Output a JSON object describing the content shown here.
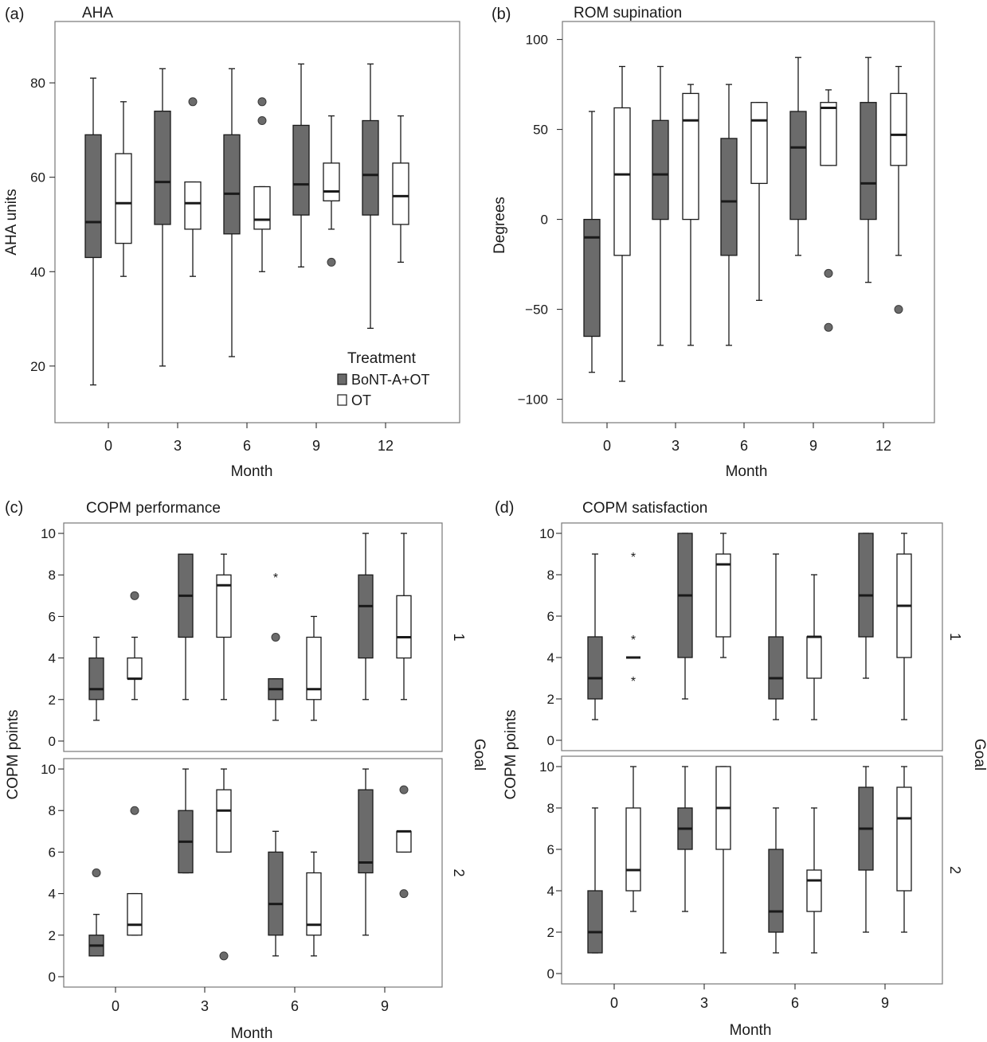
{
  "colors": {
    "treated": "#6b6b6b",
    "control": "#ffffff",
    "outlier": "#6b6b6b",
    "frame": "#777777",
    "ink": "#1a1a1a"
  },
  "legend": {
    "title": "Treatment",
    "items": [
      "BoNT-A+OT",
      "OT"
    ]
  },
  "chart_data": [
    {
      "panel_label": "(a)",
      "title": "AHA",
      "type": "box",
      "xlabel": "Month",
      "ylabel": "AHA units",
      "ylim": [
        8,
        93
      ],
      "yticks": [
        20,
        40,
        60,
        80
      ],
      "categories": [
        "0",
        "3",
        "6",
        "9",
        "12"
      ],
      "series": [
        {
          "name": "BoNT-A+OT",
          "boxes": [
            {
              "x": "0",
              "whisker_low": 16,
              "q1": 43,
              "median": 50.5,
              "q3": 69,
              "whisker_high": 81,
              "outliers": []
            },
            {
              "x": "3",
              "whisker_low": 20,
              "q1": 50,
              "median": 59,
              "q3": 74,
              "whisker_high": 83,
              "outliers": []
            },
            {
              "x": "6",
              "whisker_low": 22,
              "q1": 48,
              "median": 56.5,
              "q3": 69,
              "whisker_high": 83,
              "outliers": []
            },
            {
              "x": "9",
              "whisker_low": 41,
              "q1": 52,
              "median": 58.5,
              "q3": 71,
              "whisker_high": 84,
              "outliers": []
            },
            {
              "x": "12",
              "whisker_low": 28,
              "q1": 52,
              "median": 60.5,
              "q3": 72,
              "whisker_high": 84,
              "outliers": []
            }
          ]
        },
        {
          "name": "OT",
          "boxes": [
            {
              "x": "0",
              "whisker_low": 39,
              "q1": 46,
              "median": 54.5,
              "q3": 65,
              "whisker_high": 76,
              "outliers": []
            },
            {
              "x": "3",
              "whisker_low": 39,
              "q1": 49,
              "median": 54.5,
              "q3": 59,
              "whisker_high": 59,
              "outliers": [
                76
              ]
            },
            {
              "x": "6",
              "whisker_low": 40,
              "q1": 49,
              "median": 51,
              "q3": 58,
              "whisker_high": 58,
              "outliers": [
                76,
                72
              ]
            },
            {
              "x": "9",
              "whisker_low": 49,
              "q1": 55,
              "median": 57,
              "q3": 63,
              "whisker_high": 73,
              "outliers": [
                42
              ]
            },
            {
              "x": "12",
              "whisker_low": 42,
              "q1": 50,
              "median": 56,
              "q3": 63,
              "whisker_high": 73,
              "outliers": []
            }
          ]
        }
      ]
    },
    {
      "panel_label": "(b)",
      "title": "ROM supination",
      "type": "box",
      "xlabel": "Month",
      "ylabel": "Degrees",
      "ylim": [
        -113,
        110
      ],
      "yticks": [
        -100,
        -50,
        0,
        50,
        100
      ],
      "categories": [
        "0",
        "3",
        "6",
        "9",
        "12"
      ],
      "series": [
        {
          "name": "BoNT-A+OT",
          "boxes": [
            {
              "x": "0",
              "whisker_low": -85,
              "q1": -65,
              "median": -10,
              "q3": 0,
              "whisker_high": 60,
              "outliers": []
            },
            {
              "x": "3",
              "whisker_low": -70,
              "q1": 0,
              "median": 25,
              "q3": 55,
              "whisker_high": 85,
              "outliers": []
            },
            {
              "x": "6",
              "whisker_low": -70,
              "q1": -20,
              "median": 10,
              "q3": 45,
              "whisker_high": 75,
              "outliers": []
            },
            {
              "x": "9",
              "whisker_low": -20,
              "q1": 0,
              "median": 40,
              "q3": 60,
              "whisker_high": 90,
              "outliers": []
            },
            {
              "x": "12",
              "whisker_low": -35,
              "q1": 0,
              "median": 20,
              "q3": 65,
              "whisker_high": 90,
              "outliers": []
            }
          ]
        },
        {
          "name": "OT",
          "boxes": [
            {
              "x": "0",
              "whisker_low": -90,
              "q1": -20,
              "median": 25,
              "q3": 62,
              "whisker_high": 85,
              "outliers": []
            },
            {
              "x": "3",
              "whisker_low": -70,
              "q1": 0,
              "median": 55,
              "q3": 70,
              "whisker_high": 75,
              "outliers": []
            },
            {
              "x": "6",
              "whisker_low": -45,
              "q1": 20,
              "median": 55,
              "q3": 65,
              "whisker_high": 65,
              "outliers": []
            },
            {
              "x": "9",
              "whisker_low": 30,
              "q1": 30,
              "median": 62,
              "q3": 65,
              "whisker_high": 72,
              "outliers": [
                -30,
                -60
              ]
            },
            {
              "x": "12",
              "whisker_low": -20,
              "q1": 30,
              "median": 47,
              "q3": 70,
              "whisker_high": 85,
              "outliers": [
                -50
              ]
            }
          ]
        }
      ]
    },
    {
      "panel_label": "(c)",
      "title": "COPM performance",
      "type": "box",
      "xlabel": "Month",
      "ylabel": "COPM points",
      "facet_label": "Goal",
      "ylim": [
        -0.5,
        10.5
      ],
      "yticks": [
        0,
        2,
        4,
        6,
        8,
        10
      ],
      "categories": [
        "0",
        "3",
        "6",
        "9"
      ],
      "facets": [
        {
          "name": "1",
          "series": [
            {
              "name": "BoNT-A+OT",
              "boxes": [
                {
                  "x": "0",
                  "whisker_low": 1,
                  "q1": 2,
                  "median": 2.5,
                  "q3": 4,
                  "whisker_high": 5,
                  "outliers": []
                },
                {
                  "x": "3",
                  "whisker_low": 2,
                  "q1": 5,
                  "median": 7,
                  "q3": 9,
                  "whisker_high": 9,
                  "outliers": []
                },
                {
                  "x": "6",
                  "whisker_low": 1,
                  "q1": 2,
                  "median": 2.5,
                  "q3": 3,
                  "whisker_high": 3,
                  "outliers": [
                    5
                  ],
                  "extremes": [
                    8
                  ]
                },
                {
                  "x": "9",
                  "whisker_low": 2,
                  "q1": 4,
                  "median": 6.5,
                  "q3": 8,
                  "whisker_high": 10,
                  "outliers": []
                }
              ]
            },
            {
              "name": "OT",
              "boxes": [
                {
                  "x": "0",
                  "whisker_low": 2,
                  "q1": 3,
                  "median": 3,
                  "q3": 4,
                  "whisker_high": 5,
                  "outliers": [
                    7
                  ]
                },
                {
                  "x": "3",
                  "whisker_low": 2,
                  "q1": 5,
                  "median": 7.5,
                  "q3": 8,
                  "whisker_high": 9,
                  "outliers": []
                },
                {
                  "x": "6",
                  "whisker_low": 1,
                  "q1": 2,
                  "median": 2.5,
                  "q3": 5,
                  "whisker_high": 6,
                  "outliers": []
                },
                {
                  "x": "9",
                  "whisker_low": 2,
                  "q1": 4,
                  "median": 5,
                  "q3": 7,
                  "whisker_high": 10,
                  "outliers": []
                }
              ]
            }
          ]
        },
        {
          "name": "2",
          "series": [
            {
              "name": "BoNT-A+OT",
              "boxes": [
                {
                  "x": "0",
                  "whisker_low": 1,
                  "q1": 1,
                  "median": 1.5,
                  "q3": 2,
                  "whisker_high": 3,
                  "outliers": [
                    5
                  ]
                },
                {
                  "x": "3",
                  "whisker_low": 5,
                  "q1": 5,
                  "median": 6.5,
                  "q3": 8,
                  "whisker_high": 10,
                  "outliers": []
                },
                {
                  "x": "6",
                  "whisker_low": 1,
                  "q1": 2,
                  "median": 3.5,
                  "q3": 6,
                  "whisker_high": 7,
                  "outliers": []
                },
                {
                  "x": "9",
                  "whisker_low": 2,
                  "q1": 5,
                  "median": 5.5,
                  "q3": 9,
                  "whisker_high": 10,
                  "outliers": []
                }
              ]
            },
            {
              "name": "OT",
              "boxes": [
                {
                  "x": "0",
                  "whisker_low": 2,
                  "q1": 2,
                  "median": 2.5,
                  "q3": 4,
                  "whisker_high": 4,
                  "outliers": [
                    8
                  ]
                },
                {
                  "x": "3",
                  "whisker_low": 6,
                  "q1": 6,
                  "median": 8,
                  "q3": 9,
                  "whisker_high": 10,
                  "outliers": [
                    1
                  ]
                },
                {
                  "x": "6",
                  "whisker_low": 1,
                  "q1": 2,
                  "median": 2.5,
                  "q3": 5,
                  "whisker_high": 6,
                  "outliers": []
                },
                {
                  "x": "9",
                  "whisker_low": 6,
                  "q1": 6,
                  "median": 7,
                  "q3": 7,
                  "whisker_high": 7,
                  "outliers": [
                    9,
                    4
                  ]
                }
              ]
            }
          ]
        }
      ]
    },
    {
      "panel_label": "(d)",
      "title": "COPM satisfaction",
      "type": "box",
      "xlabel": "Month",
      "ylabel": "COPM points",
      "facet_label": "Goal",
      "ylim": [
        -0.5,
        10.5
      ],
      "yticks": [
        0,
        2,
        4,
        6,
        8,
        10
      ],
      "categories": [
        "0",
        "3",
        "6",
        "9"
      ],
      "facets": [
        {
          "name": "1",
          "series": [
            {
              "name": "BoNT-A+OT",
              "boxes": [
                {
                  "x": "0",
                  "whisker_low": 1,
                  "q1": 2,
                  "median": 3,
                  "q3": 5,
                  "whisker_high": 9,
                  "outliers": []
                },
                {
                  "x": "3",
                  "whisker_low": 2,
                  "q1": 4,
                  "median": 7,
                  "q3": 10,
                  "whisker_high": 10,
                  "outliers": []
                },
                {
                  "x": "6",
                  "whisker_low": 1,
                  "q1": 2,
                  "median": 3,
                  "q3": 5,
                  "whisker_high": 9,
                  "outliers": []
                },
                {
                  "x": "9",
                  "whisker_low": 3,
                  "q1": 5,
                  "median": 7,
                  "q3": 10,
                  "whisker_high": 10,
                  "outliers": []
                }
              ]
            },
            {
              "name": "OT",
              "boxes": [
                {
                  "x": "0",
                  "whisker_low": 4,
                  "q1": 4,
                  "median": 4,
                  "q3": 4,
                  "whisker_high": 4,
                  "outliers": [],
                  "extremes": [
                    9,
                    5,
                    3
                  ]
                },
                {
                  "x": "3",
                  "whisker_low": 4,
                  "q1": 5,
                  "median": 8.5,
                  "q3": 9,
                  "whisker_high": 10,
                  "outliers": []
                },
                {
                  "x": "6",
                  "whisker_low": 1,
                  "q1": 3,
                  "median": 5,
                  "q3": 5,
                  "whisker_high": 8,
                  "outliers": []
                },
                {
                  "x": "9",
                  "whisker_low": 1,
                  "q1": 4,
                  "median": 6.5,
                  "q3": 9,
                  "whisker_high": 10,
                  "outliers": []
                }
              ]
            }
          ]
        },
        {
          "name": "2",
          "series": [
            {
              "name": "BoNT-A+OT",
              "boxes": [
                {
                  "x": "0",
                  "whisker_low": 1,
                  "q1": 1,
                  "median": 2,
                  "q3": 4,
                  "whisker_high": 8,
                  "outliers": []
                },
                {
                  "x": "3",
                  "whisker_low": 3,
                  "q1": 6,
                  "median": 7,
                  "q3": 8,
                  "whisker_high": 10,
                  "outliers": []
                },
                {
                  "x": "6",
                  "whisker_low": 1,
                  "q1": 2,
                  "median": 3,
                  "q3": 6,
                  "whisker_high": 8,
                  "outliers": []
                },
                {
                  "x": "9",
                  "whisker_low": 2,
                  "q1": 5,
                  "median": 7,
                  "q3": 9,
                  "whisker_high": 10,
                  "outliers": []
                }
              ]
            },
            {
              "name": "OT",
              "boxes": [
                {
                  "x": "0",
                  "whisker_low": 3,
                  "q1": 4,
                  "median": 5,
                  "q3": 8,
                  "whisker_high": 10,
                  "outliers": []
                },
                {
                  "x": "3",
                  "whisker_low": 1,
                  "q1": 6,
                  "median": 8,
                  "q3": 10,
                  "whisker_high": 10,
                  "outliers": []
                },
                {
                  "x": "6",
                  "whisker_low": 1,
                  "q1": 3,
                  "median": 4.5,
                  "q3": 5,
                  "whisker_high": 8,
                  "outliers": []
                },
                {
                  "x": "9",
                  "whisker_low": 2,
                  "q1": 4,
                  "median": 7.5,
                  "q3": 9,
                  "whisker_high": 10,
                  "outliers": []
                }
              ]
            }
          ]
        }
      ]
    }
  ]
}
